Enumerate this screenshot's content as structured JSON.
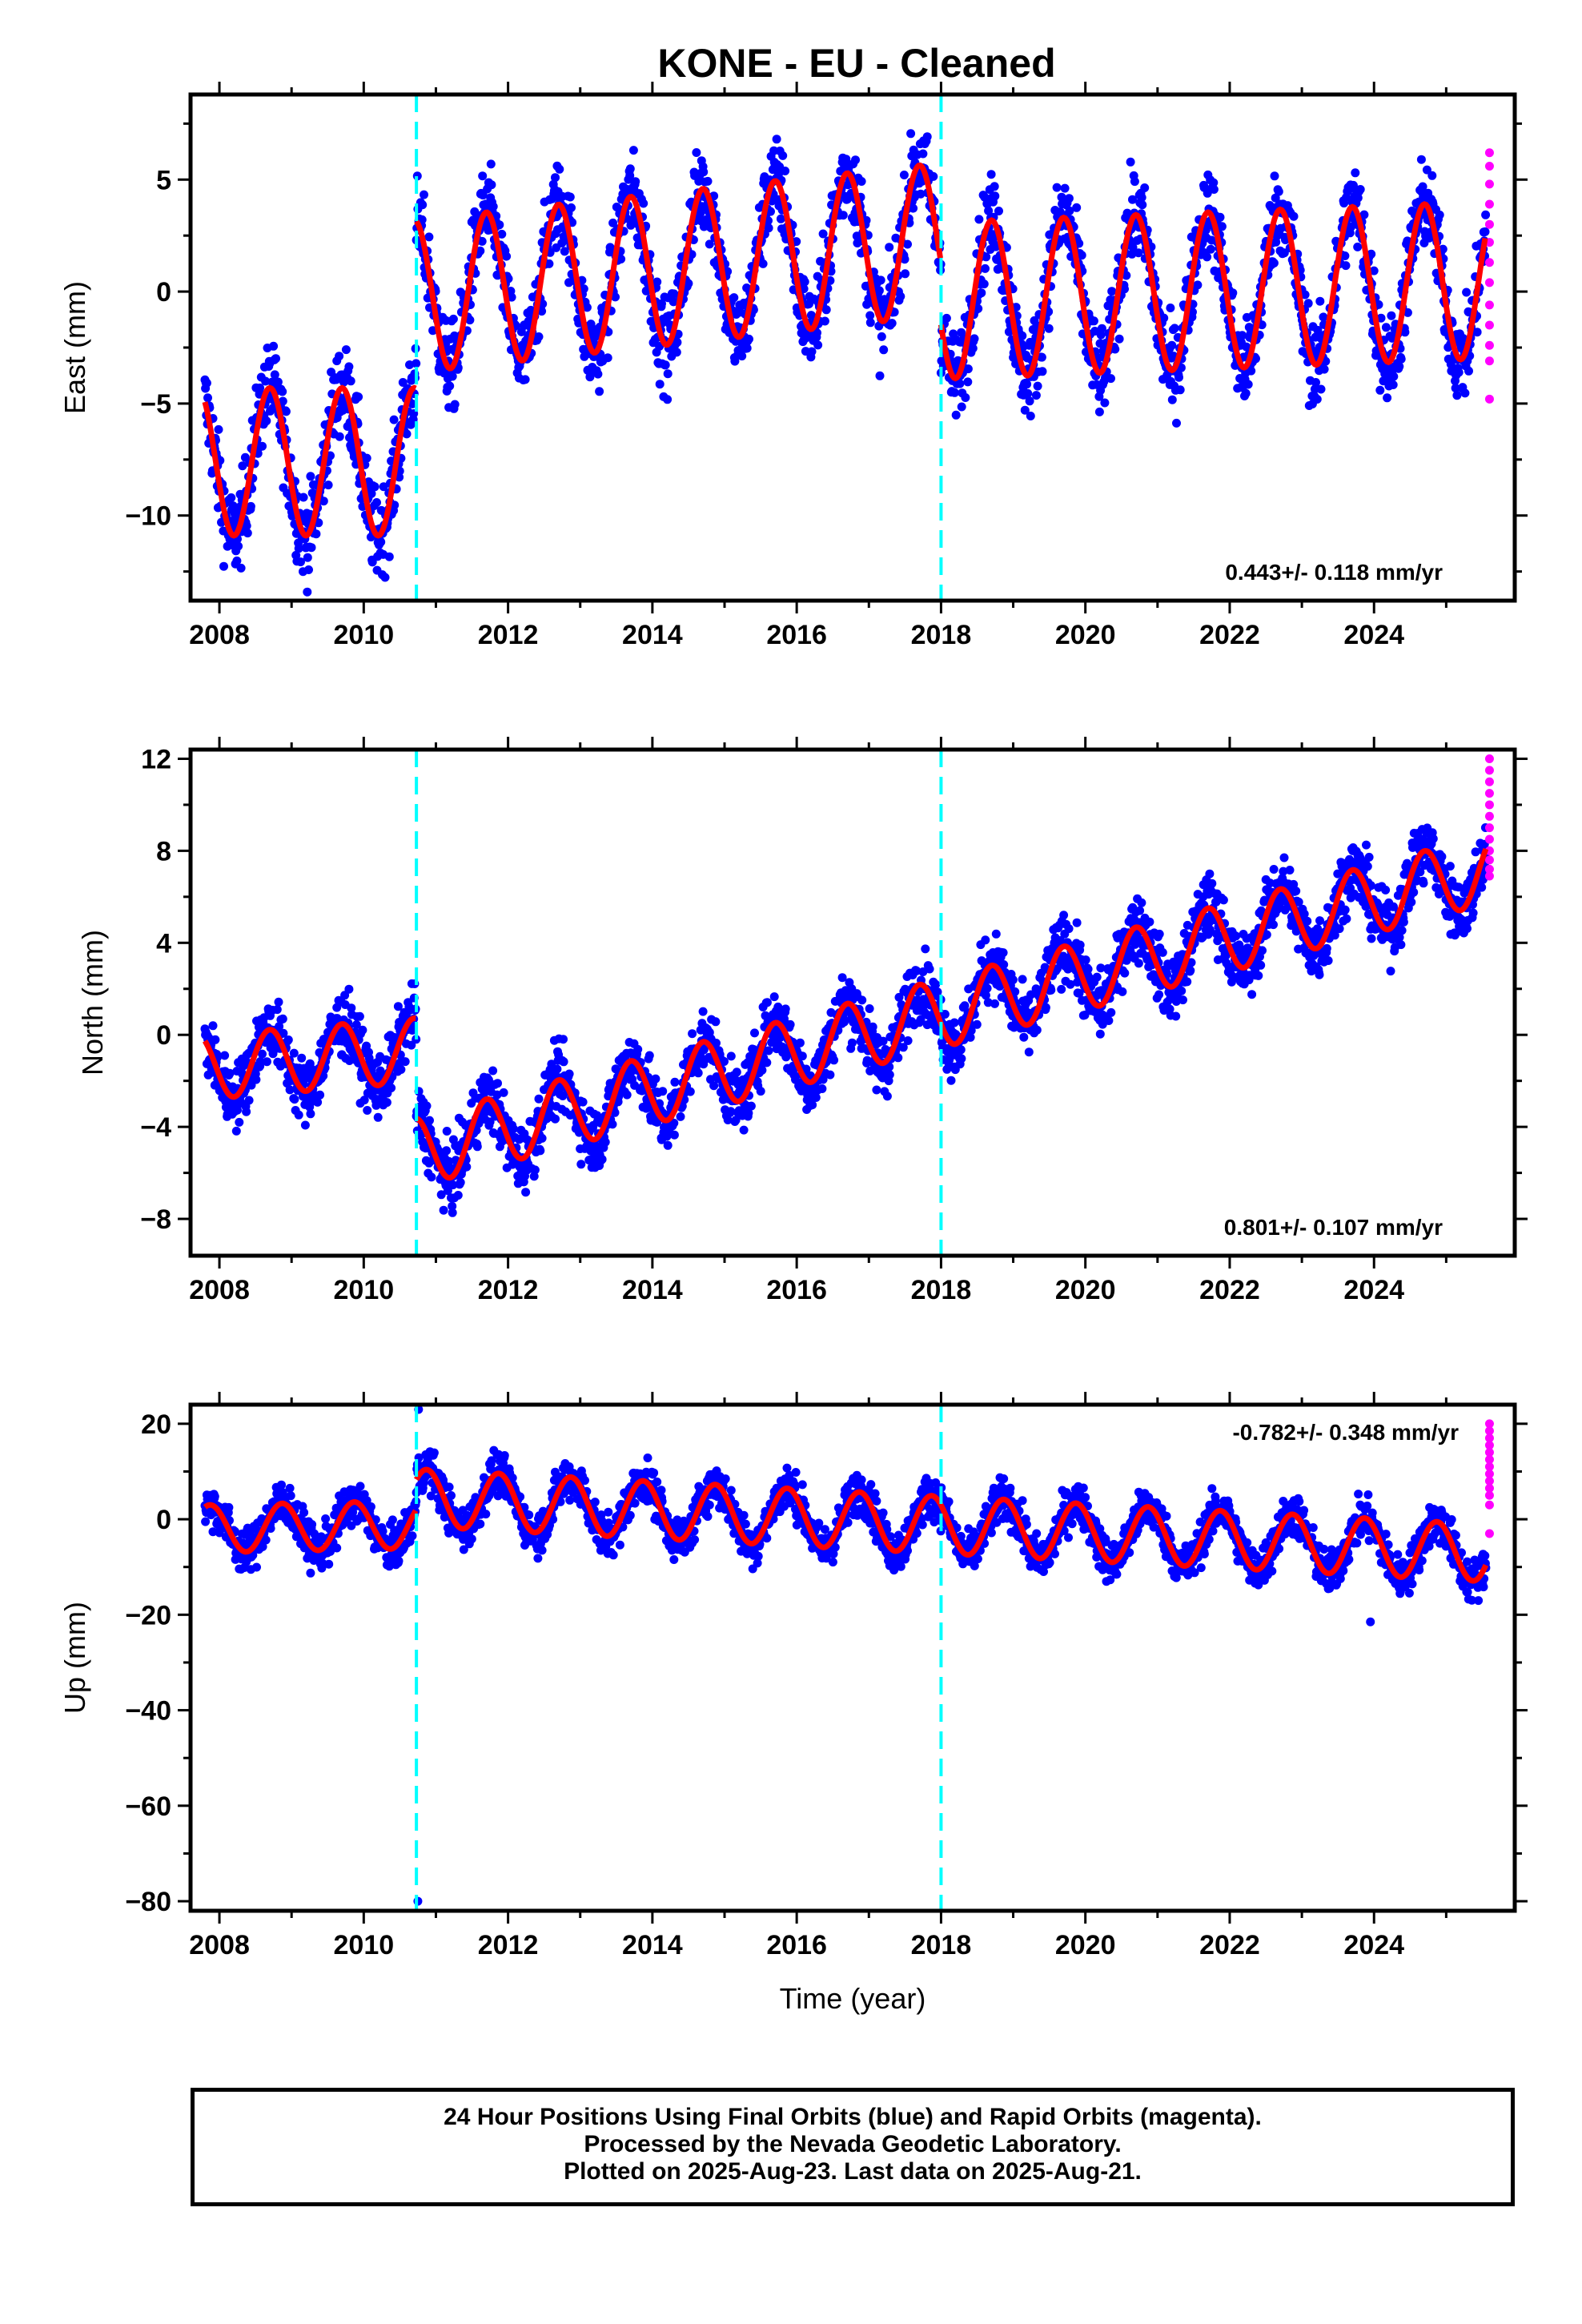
{
  "chart_data": [
    {
      "type": "scatter",
      "title": "KONE  - EU - Cleaned",
      "xlabel": "",
      "ylabel": "East (mm)",
      "xlim": [
        2007.6,
        2025.95
      ],
      "ylim": [
        -13.8,
        8.8
      ],
      "xticks": [
        2008,
        2010,
        2012,
        2014,
        2016,
        2018,
        2020,
        2022,
        2024
      ],
      "yticks": [
        5,
        0,
        -5,
        -10
      ],
      "ytick_labels": [
        "5",
        "0",
        "−5",
        "−10"
      ],
      "rate_label": "0.443+/- 0.118 mm/yr",
      "breaks": [
        2010.73,
        2018.0
      ],
      "series": [
        {
          "color": "#0000ff",
          "kind": "final-orbit points",
          "segments": [
            {
              "start": 2007.8,
              "end": 2010.73,
              "offset": -7.6,
              "amp": 3.3,
              "trend": 0.0
            },
            {
              "start": 2010.73,
              "end": 2018.0,
              "offset": -0.2,
              "amp": 3.4,
              "trend": 0.35
            },
            {
              "start": 2018.0,
              "end": 2025.55,
              "offset": -0.4,
              "amp": 3.5,
              "trend": 0.12
            }
          ],
          "noise": 1.4,
          "phase": 0.45
        },
        {
          "color": "#ff00ff",
          "kind": "rapid-orbit points",
          "x": 2025.6,
          "values": [
            6.2,
            5.6,
            4.8,
            3.9,
            3.0,
            2.2,
            1.3,
            0.4,
            -0.6,
            -1.5,
            -2.4,
            -3.1,
            -4.8
          ]
        },
        {
          "color": "#ff0000",
          "kind": "model fit"
        }
      ]
    },
    {
      "type": "scatter",
      "xlabel": "",
      "ylabel": "North (mm)",
      "xlim": [
        2007.6,
        2025.95
      ],
      "ylim": [
        -9.6,
        12.4
      ],
      "xticks": [
        2008,
        2010,
        2012,
        2014,
        2016,
        2018,
        2020,
        2022,
        2024
      ],
      "yticks": [
        12,
        8,
        4,
        0,
        -4,
        -8
      ],
      "ytick_labels": [
        "12",
        "8",
        "4",
        "0",
        "−4",
        "−8"
      ],
      "rate_label": "0.801+/- 0.107 mm/yr",
      "breaks": [
        2010.73,
        2018.0
      ],
      "series": [
        {
          "color": "#0000ff",
          "kind": "final-orbit points",
          "segments": [
            {
              "start": 2007.8,
              "end": 2010.73,
              "offset": -1.4,
              "amp": 1.4,
              "trend": 0.25
            },
            {
              "start": 2010.73,
              "end": 2025.55,
              "offset": -5.1,
              "amp": 1.5,
              "trend": 0.83
            }
          ],
          "noise": 1.0,
          "phase": 0.45
        },
        {
          "color": "#ff00ff",
          "kind": "rapid-orbit points",
          "x": 2025.6,
          "values": [
            12.0,
            11.5,
            11.0,
            10.5,
            10.0,
            9.5,
            9.0,
            8.5,
            8.0,
            7.6,
            7.2,
            6.9
          ]
        },
        {
          "color": "#ff0000",
          "kind": "model fit"
        }
      ]
    },
    {
      "type": "scatter",
      "xlabel": "Time (year)",
      "ylabel": "Up (mm)",
      "xlim": [
        2007.6,
        2025.95
      ],
      "ylim": [
        -82,
        24
      ],
      "xticks": [
        2008,
        2010,
        2012,
        2014,
        2016,
        2018,
        2020,
        2022,
        2024
      ],
      "yticks": [
        20,
        0,
        -20,
        -40,
        -60,
        -80
      ],
      "ytick_labels": [
        "20",
        "0",
        "−20",
        "−40",
        "−60",
        "−80"
      ],
      "rate_label": "-0.782+/- 0.348 mm/yr",
      "breaks": [
        2010.73,
        2018.0
      ],
      "series": [
        {
          "color": "#0000ff",
          "kind": "final-orbit points",
          "segments": [
            {
              "start": 2007.8,
              "end": 2010.73,
              "offset": -2.0,
              "amp": 5.0,
              "trend": 0.3
            },
            {
              "start": 2010.73,
              "end": 2025.55,
              "offset": 4.5,
              "amp": 6.0,
              "trend": -0.78
            }
          ],
          "noise": 3.2,
          "phase": 0.62,
          "outliers": [
            [
              2010.76,
              23.0
            ],
            [
              2010.75,
              -80.0
            ],
            [
              2023.95,
              -21.5
            ]
          ]
        },
        {
          "color": "#ff00ff",
          "kind": "rapid-orbit points",
          "x": 2025.6,
          "values": [
            20.0,
            18.5,
            17.0,
            15.5,
            14.0,
            12.5,
            11.0,
            9.5,
            8.0,
            6.5,
            5.0,
            3.0,
            -3.0
          ]
        },
        {
          "color": "#ff0000",
          "kind": "model fit"
        }
      ]
    }
  ],
  "caption": {
    "line1": "24 Hour Positions Using Final Orbits (blue) and Rapid Orbits (magenta).",
    "line2": "Processed by the Nevada Geodetic Laboratory.",
    "line3": "Plotted on 2025-Aug-23. Last data on 2025-Aug-21."
  }
}
